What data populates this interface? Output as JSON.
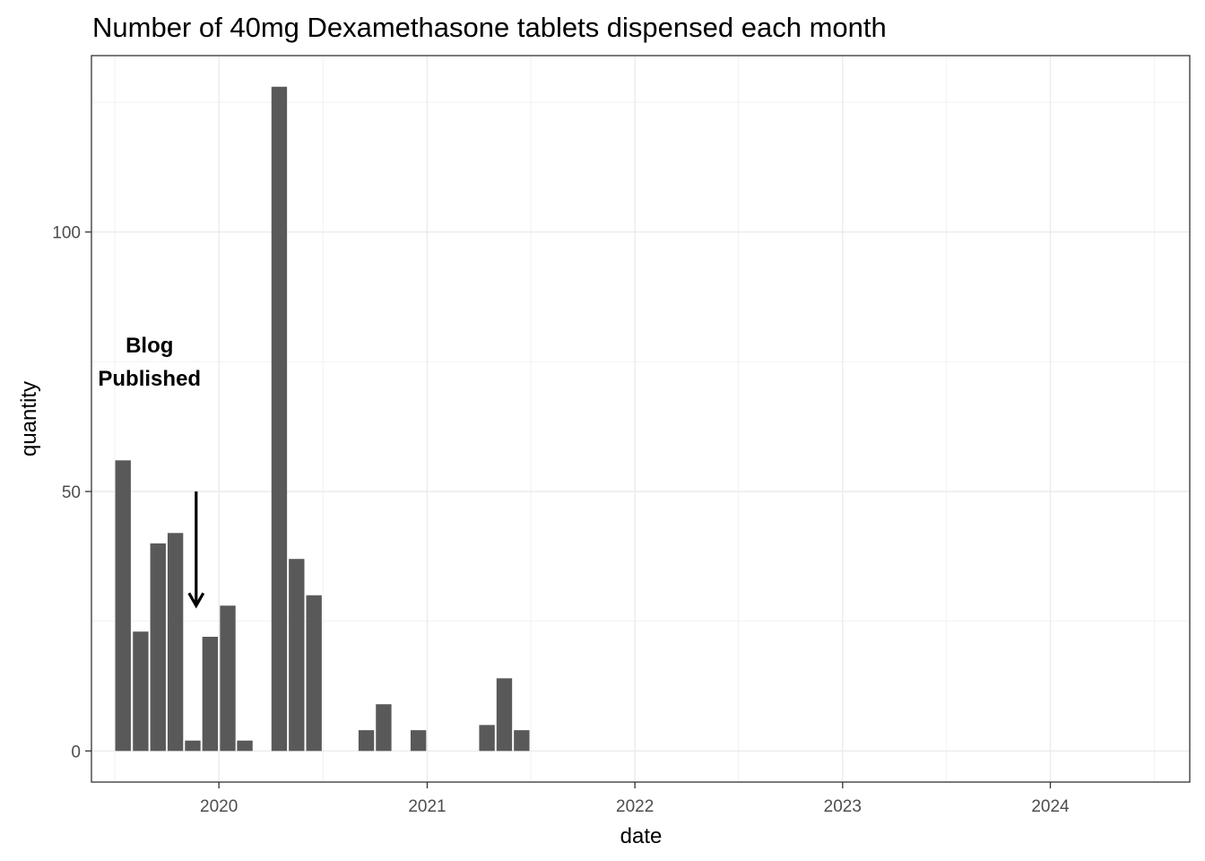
{
  "chart_data": {
    "type": "bar",
    "title": "Number of 40mg Dexamethasone tablets dispensed each month",
    "xlabel": "date",
    "ylabel": "quantity",
    "x_axis_type": "date",
    "x_range": [
      "2019-05-22",
      "2024-09-02"
    ],
    "x_ticks": [
      {
        "date": "2020-01-01",
        "label": "2020"
      },
      {
        "date": "2021-01-01",
        "label": "2021"
      },
      {
        "date": "2022-01-01",
        "label": "2022"
      },
      {
        "date": "2023-01-01",
        "label": "2023"
      },
      {
        "date": "2024-01-01",
        "label": "2024"
      }
    ],
    "ylim": [
      -6,
      134
    ],
    "y_ticks": [
      0,
      50,
      100
    ],
    "y_minor_gridlines": [
      25,
      75,
      125
    ],
    "grid": true,
    "bar_color": "#595959",
    "categories": [
      "2019-07",
      "2019-08",
      "2019-09",
      "2019-10",
      "2019-11",
      "2019-12",
      "2020-01",
      "2020-02",
      "2020-03",
      "2020-04",
      "2020-05",
      "2020-06",
      "2020-07",
      "2020-08",
      "2020-09",
      "2020-10",
      "2020-11",
      "2020-12",
      "2021-01",
      "2021-02",
      "2021-03",
      "2021-04",
      "2021-05",
      "2021-06"
    ],
    "values": [
      56,
      23,
      40,
      42,
      2,
      22,
      28,
      2,
      0,
      128,
      37,
      30,
      0,
      0,
      4,
      9,
      0,
      4,
      0,
      0,
      0,
      5,
      14,
      4
    ],
    "annotation": {
      "lines": [
        "Blog",
        "Published"
      ],
      "label_date": "2019-09-01",
      "label_y": 75,
      "arrow_date": "2019-11-22",
      "arrow_from_y": 50,
      "arrow_to_y": 28
    }
  }
}
